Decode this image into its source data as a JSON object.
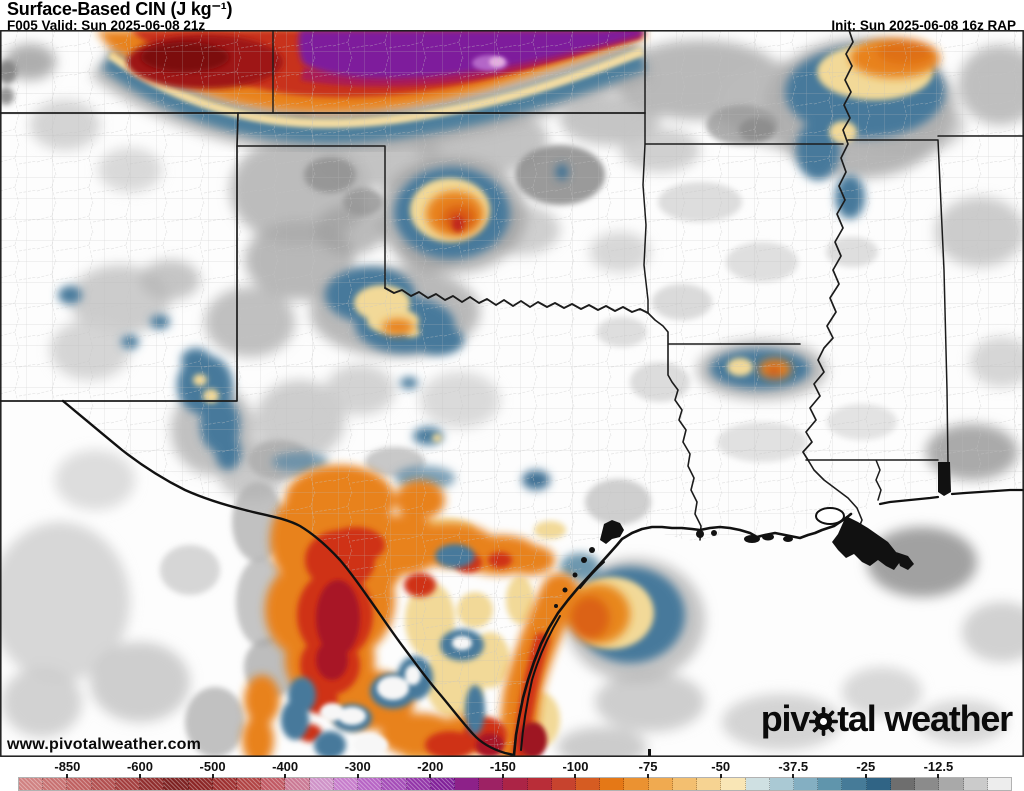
{
  "header": {
    "title": "Surface-Based CIN (J kg⁻¹)",
    "valid_line": "F005 Valid: Sun 2025-06-08 21z",
    "init_line": "Init: Sun 2025-06-08 16z RAP"
  },
  "map": {
    "watermark": "www.pivotalweather.com",
    "logo": {
      "prefix": "piv",
      "suffix": "tal weather",
      "gear_icon": "gear"
    }
  },
  "colorbar": {
    "tick_labels": [
      "-850",
      "-600",
      "-500",
      "-400",
      "-300",
      "-200",
      "-150",
      "-100",
      "-75",
      "-50",
      "-37.5",
      "-25",
      "-12.5"
    ],
    "hatched_segments_before_index": 18,
    "segment_colors": [
      "#d08282",
      "#c87272",
      "#bf6161",
      "#b25050",
      "#a33e3e",
      "#902e2e",
      "#7e2222",
      "#8c2626",
      "#9e3131",
      "#b14444",
      "#c15a64",
      "#cb7a95",
      "#cf93c8",
      "#c77ecc",
      "#b765c5",
      "#a54eb8",
      "#9336a9",
      "#812199",
      "#8d2189",
      "#9d2264",
      "#ac2446",
      "#b92d38",
      "#c7432e",
      "#d65c22",
      "#e57816",
      "#eb9231",
      "#f0aa50",
      "#f3bf70",
      "#f6d392",
      "#f9e6b6",
      "#cfe0e2",
      "#aac9d4",
      "#84afc2",
      "#6095ac",
      "#467b98",
      "#306485",
      "#6e6e6e",
      "#8b8b8b",
      "#a9a9a9",
      "#cbcbcb",
      "#ededed"
    ]
  }
}
